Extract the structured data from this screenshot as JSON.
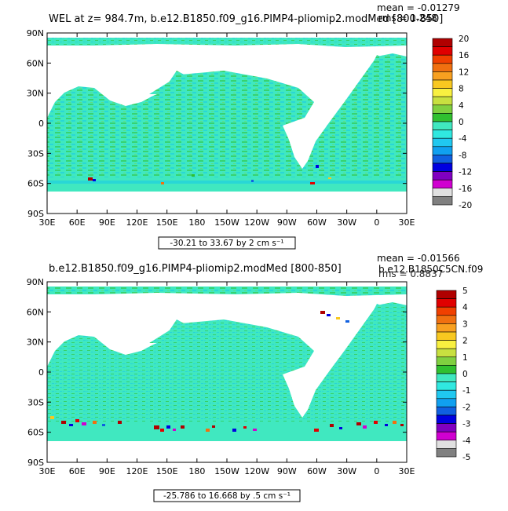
{
  "colors": {
    "ocean_base": "#40E8C0",
    "ocean_alt": "#1FD0E0",
    "land": "#FFFFFF",
    "frame": "#000000"
  },
  "lat_labels": [
    "90N",
    "60N",
    "30N",
    "0",
    "30S",
    "60S",
    "90S"
  ],
  "lon_labels": [
    "30E",
    "60E",
    "90E",
    "120E",
    "150E",
    "180",
    "150W",
    "120W",
    "90W",
    "60W",
    "30W",
    "0",
    "30E"
  ],
  "panel_top": {
    "title": "WEL at z= 984.7m, b.e12.B1850.f09_g16.PIMP4-pliomip2.modMed [800-850]",
    "mean_text": "mean = -0.01279",
    "rms_text": "rms = 1.248",
    "range_text": "-30.21 to 33.67 by 2 cm s⁻¹",
    "colorbar": {
      "labels": [
        "20",
        "16",
        "12",
        "8",
        "4",
        "0",
        "-4",
        "-8",
        "-12",
        "-16",
        "-20"
      ],
      "colors": [
        "#B00000",
        "#E00000",
        "#F04000",
        "#F07010",
        "#F8A020",
        "#F8C820",
        "#F8F040",
        "#C8E040",
        "#80D040",
        "#30C030",
        "#40E8C0",
        "#30E8E0",
        "#20C8F0",
        "#10A0F0",
        "#1060E0",
        "#0000E0",
        "#8000C0",
        "#D000D0",
        "#E0E0E0",
        "#808080"
      ]
    }
  },
  "panel_bottom": {
    "title": "b.e12.B1850.f09_g16.PIMP4-pliomip2.modMed [800-850]",
    "mean_text": "mean = -0.01566",
    "rms_text": "rms = 0.8837",
    "subtitle_right": "b.e12.B1850C5CN.f09",
    "range_text": "-25.786 to 16.668 by .5 cm s⁻¹",
    "colorbar": {
      "labels": [
        "5",
        "4",
        "3",
        "2",
        "1",
        "0",
        "-1",
        "-2",
        "-3",
        "-4",
        "-5"
      ],
      "colors": [
        "#B00000",
        "#E00000",
        "#F04000",
        "#F07010",
        "#F8A020",
        "#F8C820",
        "#F8F040",
        "#C8E040",
        "#80D040",
        "#30C030",
        "#40E8C0",
        "#30E8E0",
        "#20C8F0",
        "#10A0F0",
        "#1060E0",
        "#0000E0",
        "#8000C0",
        "#D000D0",
        "#E0E0E0",
        "#808080"
      ]
    }
  }
}
